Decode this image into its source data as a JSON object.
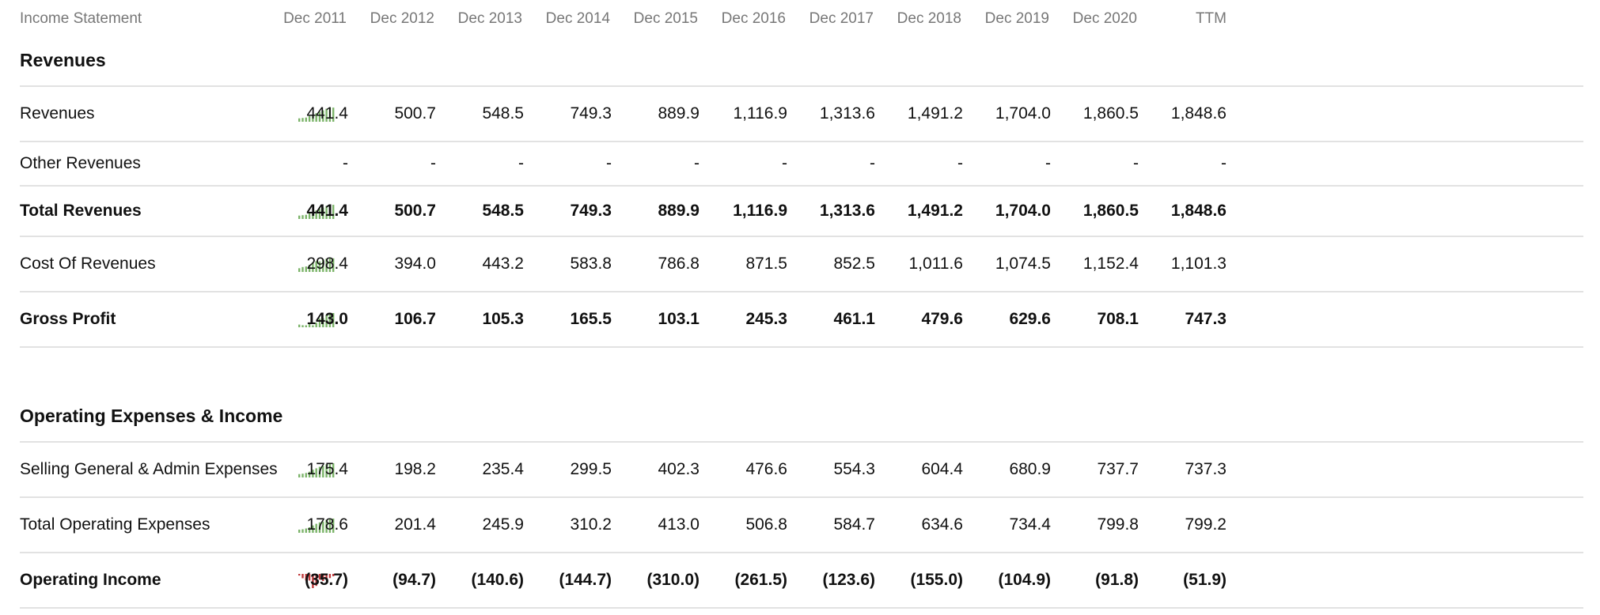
{
  "header": {
    "title": "Income Statement",
    "columns": [
      "Dec 2011",
      "Dec 2012",
      "Dec 2013",
      "Dec 2014",
      "Dec 2015",
      "Dec 2016",
      "Dec 2017",
      "Dec 2018",
      "Dec 2019",
      "Dec 2020",
      "TTM"
    ]
  },
  "sections": [
    {
      "title": "Revenues",
      "rows": [
        {
          "label": "Revenues",
          "bold": false,
          "spark": "green",
          "values": [
            "441.4",
            "500.7",
            "548.5",
            "749.3",
            "889.9",
            "1,116.9",
            "1,313.6",
            "1,491.2",
            "1,704.0",
            "1,860.5",
            "1,848.6"
          ],
          "series": [
            441.4,
            500.7,
            548.5,
            749.3,
            889.9,
            1116.9,
            1313.6,
            1491.2,
            1704.0,
            1860.5,
            1848.6
          ]
        },
        {
          "label": "Other Revenues",
          "bold": false,
          "spark": "none",
          "values": [
            "-",
            "-",
            "-",
            "-",
            "-",
            "-",
            "-",
            "-",
            "-",
            "-",
            "-"
          ],
          "series": []
        },
        {
          "label": "Total Revenues",
          "bold": true,
          "spark": "green",
          "values": [
            "441.4",
            "500.7",
            "548.5",
            "749.3",
            "889.9",
            "1,116.9",
            "1,313.6",
            "1,491.2",
            "1,704.0",
            "1,860.5",
            "1,848.6"
          ],
          "series": [
            441.4,
            500.7,
            548.5,
            749.3,
            889.9,
            1116.9,
            1313.6,
            1491.2,
            1704.0,
            1860.5,
            1848.6
          ]
        },
        {
          "label": "Cost Of Revenues",
          "bold": false,
          "spark": "green",
          "values": [
            "298.4",
            "394.0",
            "443.2",
            "583.8",
            "786.8",
            "871.5",
            "852.5",
            "1,011.6",
            "1,074.5",
            "1,152.4",
            "1,101.3"
          ],
          "series": [
            298.4,
            394.0,
            443.2,
            583.8,
            786.8,
            871.5,
            852.5,
            1011.6,
            1074.5,
            1152.4,
            1101.3
          ]
        },
        {
          "label": "Gross Profit",
          "bold": true,
          "spark": "green",
          "values": [
            "143.0",
            "106.7",
            "105.3",
            "165.5",
            "103.1",
            "245.3",
            "461.1",
            "479.6",
            "629.6",
            "708.1",
            "747.3"
          ],
          "series": [
            143.0,
            106.7,
            105.3,
            165.5,
            103.1,
            245.3,
            461.1,
            479.6,
            629.6,
            708.1,
            747.3
          ]
        }
      ]
    },
    {
      "title": "Operating Expenses & Income",
      "rows": [
        {
          "label": "Selling General & Admin Expenses",
          "bold": false,
          "spark": "green",
          "values": [
            "175.4",
            "198.2",
            "235.4",
            "299.5",
            "402.3",
            "476.6",
            "554.3",
            "604.4",
            "680.9",
            "737.7",
            "737.3"
          ],
          "series": [
            175.4,
            198.2,
            235.4,
            299.5,
            402.3,
            476.6,
            554.3,
            604.4,
            680.9,
            737.7,
            737.3
          ]
        },
        {
          "label": "Total Operating Expenses",
          "bold": false,
          "spark": "green",
          "values": [
            "178.6",
            "201.4",
            "245.9",
            "310.2",
            "413.0",
            "506.8",
            "584.7",
            "634.6",
            "734.4",
            "799.8",
            "799.2"
          ],
          "series": [
            178.6,
            201.4,
            245.9,
            310.2,
            413.0,
            506.8,
            584.7,
            634.6,
            734.4,
            799.8,
            799.2
          ]
        },
        {
          "label": "Operating Income",
          "bold": true,
          "spark": "red",
          "values": [
            "(35.7)",
            "(94.7)",
            "(140.6)",
            "(144.7)",
            "(310.0)",
            "(261.5)",
            "(123.6)",
            "(155.0)",
            "(104.9)",
            "(91.8)",
            "(51.9)"
          ],
          "series": [
            -35.7,
            -94.7,
            -140.6,
            -144.7,
            -310.0,
            -261.5,
            -123.6,
            -155.0,
            -104.9,
            -91.8,
            -51.9
          ]
        }
      ]
    }
  ],
  "colors": {
    "spark_green": "#7cb46a",
    "spark_red": "#c0393b",
    "divider": "#e2e2e2",
    "header_text": "#777777"
  }
}
